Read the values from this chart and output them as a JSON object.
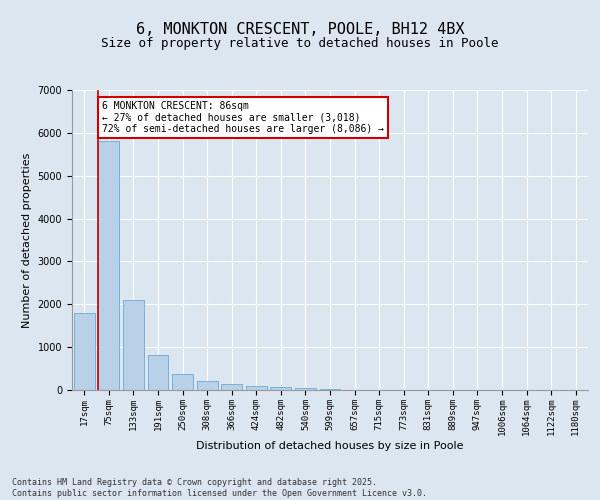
{
  "title": "6, MONKTON CRESCENT, POOLE, BH12 4BX",
  "subtitle": "Size of property relative to detached houses in Poole",
  "xlabel": "Distribution of detached houses by size in Poole",
  "ylabel": "Number of detached properties",
  "categories": [
    "17sqm",
    "75sqm",
    "133sqm",
    "191sqm",
    "250sqm",
    "308sqm",
    "366sqm",
    "424sqm",
    "482sqm",
    "540sqm",
    "599sqm",
    "657sqm",
    "715sqm",
    "773sqm",
    "831sqm",
    "889sqm",
    "947sqm",
    "1006sqm",
    "1064sqm",
    "1122sqm",
    "1180sqm"
  ],
  "values": [
    1800,
    5820,
    2100,
    820,
    370,
    205,
    130,
    100,
    80,
    50,
    30,
    8,
    5,
    4,
    3,
    2,
    2,
    1,
    1,
    1,
    1
  ],
  "bar_color": "#b8d0e8",
  "bar_edge_color": "#6aaad4",
  "red_line_index": 1,
  "red_line_color": "#cc0000",
  "annotation_text": "6 MONKTON CRESCENT: 86sqm\n← 27% of detached houses are smaller (3,018)\n72% of semi-detached houses are larger (8,086) →",
  "annotation_box_color": "#ffffff",
  "annotation_box_edge": "#cc0000",
  "ylim": [
    0,
    7000
  ],
  "yticks": [
    0,
    1000,
    2000,
    3000,
    4000,
    5000,
    6000,
    7000
  ],
  "background_color": "#dce6f0",
  "plot_bg_color": "#dce6f0",
  "footer_line1": "Contains HM Land Registry data © Crown copyright and database right 2025.",
  "footer_line2": "Contains public sector information licensed under the Open Government Licence v3.0.",
  "title_fontsize": 11,
  "subtitle_fontsize": 9,
  "tick_fontsize": 6.5,
  "ylabel_fontsize": 8,
  "xlabel_fontsize": 8,
  "footer_fontsize": 6,
  "annotation_fontsize": 7
}
